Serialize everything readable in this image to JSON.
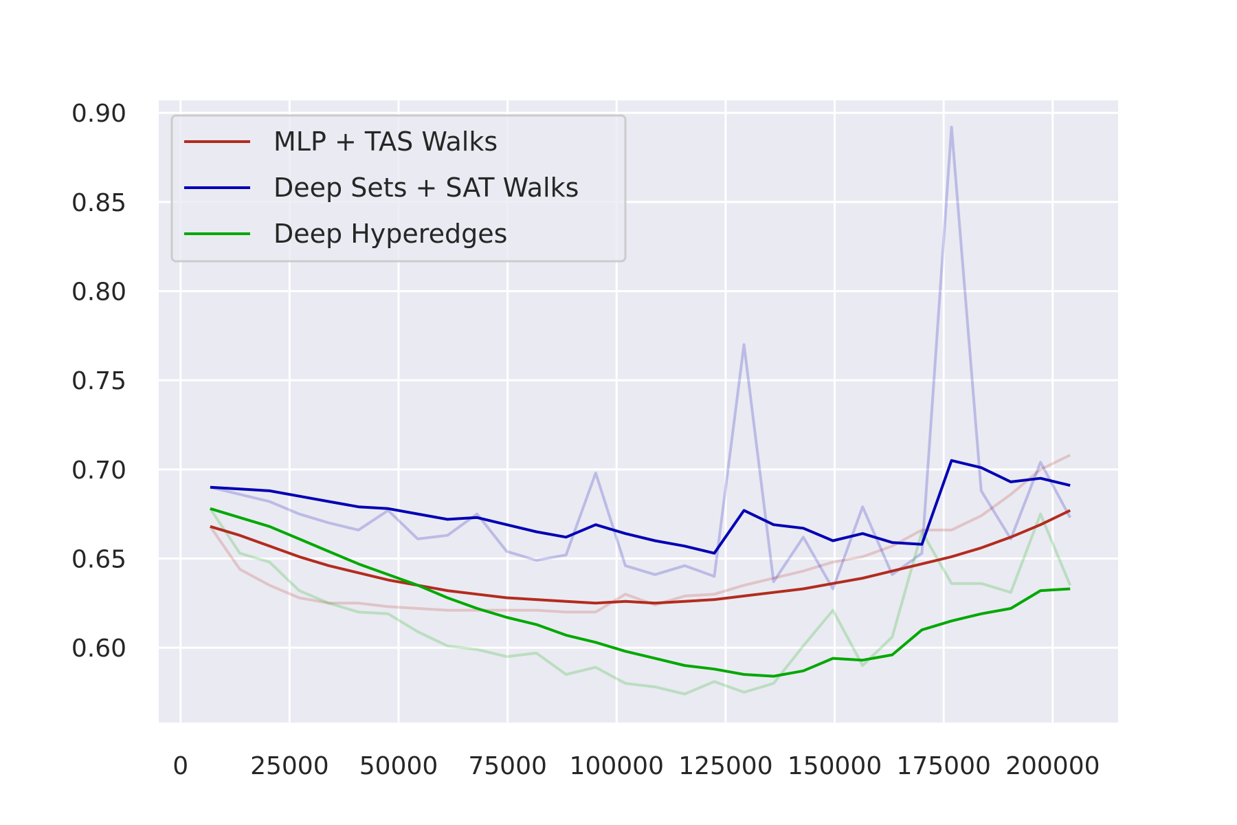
{
  "chart_data": {
    "type": "line",
    "title": "",
    "xlabel": "",
    "ylabel": "",
    "xlim": [
      -5000,
      215000
    ],
    "ylim": [
      0.558,
      0.907
    ],
    "xticks": [
      0,
      25000,
      50000,
      75000,
      100000,
      125000,
      150000,
      175000,
      200000
    ],
    "xtick_labels": [
      "0",
      "25000",
      "50000",
      "75000",
      "100000",
      "125000",
      "150000",
      "175000",
      "200000"
    ],
    "yticks": [
      0.6,
      0.65,
      0.7,
      0.75,
      0.8,
      0.85,
      0.9
    ],
    "ytick_labels": [
      "0.60",
      "0.65",
      "0.70",
      "0.75",
      "0.80",
      "0.85",
      "0.90"
    ],
    "grid": true,
    "background": "#eaeaf2",
    "legend_position": "top-left",
    "x": [
      6800,
      13600,
      20400,
      27200,
      34000,
      40800,
      47600,
      54400,
      61200,
      68000,
      74800,
      81600,
      88400,
      95200,
      102000,
      108800,
      115600,
      122400,
      129200,
      136000,
      142800,
      149600,
      156400,
      163200,
      170000,
      176800,
      183600,
      190400,
      197200,
      204000
    ],
    "series": [
      {
        "name": "MLP + TAS Walks",
        "color": "#b22c1e",
        "raw": [
          0.668,
          0.644,
          0.635,
          0.628,
          0.625,
          0.625,
          0.623,
          0.622,
          0.621,
          0.621,
          0.621,
          0.621,
          0.62,
          0.62,
          0.63,
          0.624,
          0.629,
          0.63,
          0.635,
          0.639,
          0.643,
          0.648,
          0.651,
          0.657,
          0.666,
          0.666,
          0.674,
          0.686,
          0.7,
          0.708
        ],
        "smoothed": [
          0.668,
          0.663,
          0.657,
          0.651,
          0.646,
          0.642,
          0.638,
          0.635,
          0.632,
          0.63,
          0.628,
          0.627,
          0.626,
          0.625,
          0.626,
          0.625,
          0.626,
          0.627,
          0.629,
          0.631,
          0.633,
          0.636,
          0.639,
          0.643,
          0.647,
          0.651,
          0.656,
          0.662,
          0.669,
          0.677
        ]
      },
      {
        "name": "Deep Sets + SAT Walks",
        "color": "#0000b4",
        "raw": [
          0.69,
          0.686,
          0.682,
          0.675,
          0.67,
          0.666,
          0.677,
          0.661,
          0.663,
          0.675,
          0.654,
          0.649,
          0.652,
          0.698,
          0.646,
          0.641,
          0.646,
          0.64,
          0.77,
          0.637,
          0.662,
          0.633,
          0.679,
          0.641,
          0.653,
          0.892,
          0.688,
          0.661,
          0.704,
          0.673
        ],
        "smoothed": [
          0.69,
          0.689,
          0.688,
          0.685,
          0.682,
          0.679,
          0.678,
          0.675,
          0.672,
          0.673,
          0.669,
          0.665,
          0.662,
          0.669,
          0.664,
          0.66,
          0.657,
          0.653,
          0.677,
          0.669,
          0.667,
          0.66,
          0.664,
          0.659,
          0.658,
          0.705,
          0.701,
          0.693,
          0.695,
          0.691
        ]
      },
      {
        "name": "Deep Hyperedges",
        "color": "#00a800",
        "raw": [
          0.678,
          0.653,
          0.648,
          0.632,
          0.625,
          0.62,
          0.619,
          0.609,
          0.601,
          0.599,
          0.595,
          0.597,
          0.585,
          0.589,
          0.58,
          0.578,
          0.574,
          0.581,
          0.575,
          0.58,
          0.601,
          0.621,
          0.59,
          0.606,
          0.665,
          0.636,
          0.636,
          0.631,
          0.675,
          0.635
        ],
        "smoothed": [
          0.678,
          0.673,
          0.668,
          0.661,
          0.654,
          0.647,
          0.641,
          0.635,
          0.628,
          0.622,
          0.617,
          0.613,
          0.607,
          0.603,
          0.598,
          0.594,
          0.59,
          0.588,
          0.585,
          0.584,
          0.587,
          0.594,
          0.593,
          0.596,
          0.61,
          0.615,
          0.619,
          0.622,
          0.632,
          0.633
        ]
      }
    ]
  }
}
